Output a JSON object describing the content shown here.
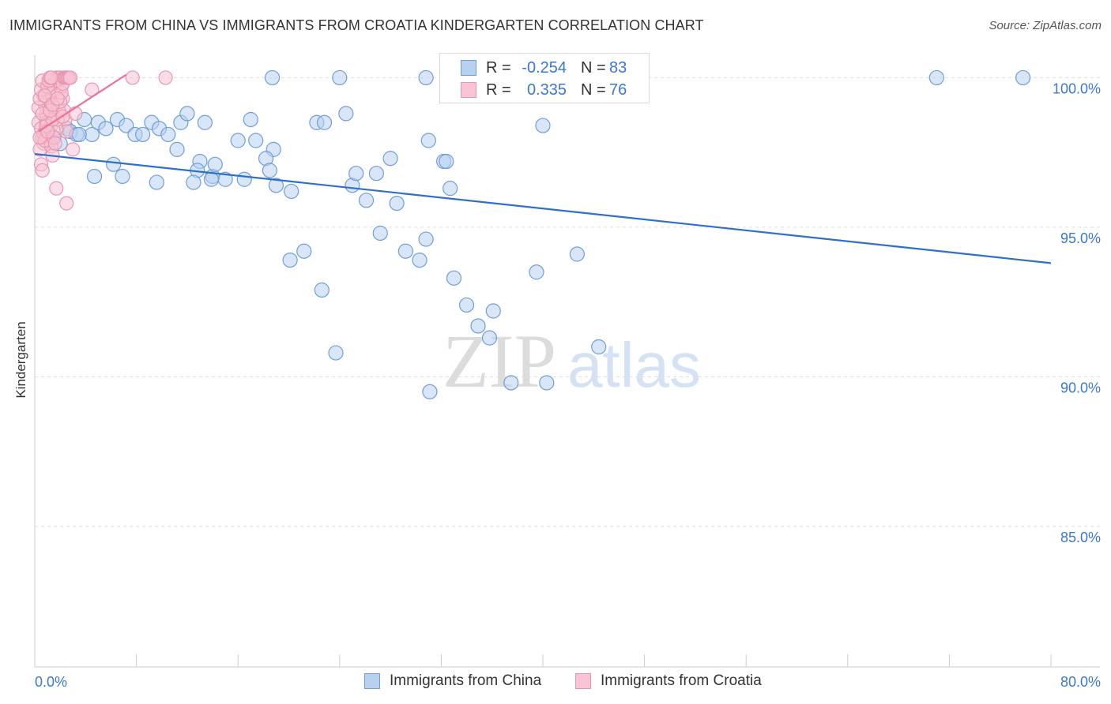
{
  "title": "IMMIGRANTS FROM CHINA VS IMMIGRANTS FROM CROATIA KINDERGARTEN CORRELATION CHART",
  "source": "Source: ZipAtlas.com",
  "watermark": {
    "zip": "ZIP",
    "atlas": "atlas"
  },
  "legend": {
    "r_label": "R =",
    "n_label": "N =",
    "rows": [
      {
        "r": "-0.254",
        "n": "83",
        "fill": "#b8d1f1",
        "stroke": "#6f9ed8"
      },
      {
        "r": "0.335",
        "n": "76",
        "fill": "#f8c3d3",
        "stroke": "#e897b1"
      }
    ]
  },
  "chart_data": {
    "type": "scatter",
    "title": "IMMIGRANTS FROM CHINA VS IMMIGRANTS FROM CROATIA KINDERGARTEN CORRELATION CHART",
    "xlabel": "",
    "ylabel": "Kindergarten",
    "x_tick_labels": [
      "0.0%",
      "80.0%"
    ],
    "y_tick_labels": [
      "100.0%",
      "95.0%",
      "90.0%",
      "85.0%"
    ],
    "y_ticks": [
      100.0,
      95.0,
      90.0,
      85.0
    ],
    "xlim": [
      0,
      80
    ],
    "ylim": [
      80.3,
      100.75
    ],
    "grid": true,
    "legend_position": "top-center",
    "series": [
      {
        "name": "Immigrants from China",
        "color": "#6f9ed8",
        "fill": "#b8d1f1",
        "line_color": "#2f6fcc",
        "R": -0.254,
        "N": 83,
        "trend": {
          "x": [
            0,
            80
          ],
          "y": [
            97.45,
            93.8
          ]
        },
        "points": [
          [
            1.0,
            98.1
          ],
          [
            1.5,
            98.0
          ],
          [
            2.0,
            97.8
          ],
          [
            2.5,
            98.3
          ],
          [
            2.8,
            98.2
          ],
          [
            3.3,
            98.1
          ],
          [
            3.9,
            98.6
          ],
          [
            4.5,
            98.1
          ],
          [
            3.5,
            98.1
          ],
          [
            5.0,
            98.5
          ],
          [
            5.6,
            98.3
          ],
          [
            6.2,
            97.1
          ],
          [
            6.5,
            98.6
          ],
          [
            7.2,
            98.4
          ],
          [
            7.9,
            98.1
          ],
          [
            8.5,
            98.1
          ],
          [
            9.2,
            98.5
          ],
          [
            9.8,
            98.3
          ],
          [
            10.5,
            98.1
          ],
          [
            11.5,
            98.5
          ],
          [
            12.0,
            98.8
          ],
          [
            13.0,
            97.2
          ],
          [
            13.4,
            98.5
          ],
          [
            12.8,
            96.9
          ],
          [
            12.5,
            96.5
          ],
          [
            14.0,
            96.7
          ],
          [
            16.0,
            97.9
          ],
          [
            17.0,
            98.6
          ],
          [
            17.4,
            97.9
          ],
          [
            18.8,
            97.6
          ],
          [
            18.2,
            97.3
          ],
          [
            18.5,
            96.9
          ],
          [
            19.0,
            96.4
          ],
          [
            20.2,
            96.2
          ],
          [
            22.2,
            98.5
          ],
          [
            22.8,
            98.5
          ],
          [
            24.5,
            98.8
          ],
          [
            25.0,
            96.4
          ],
          [
            25.3,
            96.8
          ],
          [
            26.1,
            95.9
          ],
          [
            26.9,
            96.8
          ],
          [
            28.0,
            97.3
          ],
          [
            28.5,
            95.8
          ],
          [
            29.2,
            94.2
          ],
          [
            30.3,
            93.9
          ],
          [
            30.8,
            94.6
          ],
          [
            31.0,
            97.9
          ],
          [
            32.2,
            97.2
          ],
          [
            32.4,
            97.2
          ],
          [
            32.7,
            96.3
          ],
          [
            33.0,
            93.3
          ],
          [
            34.0,
            92.4
          ],
          [
            34.9,
            91.7
          ],
          [
            35.8,
            91.3
          ],
          [
            36.1,
            92.2
          ],
          [
            37.5,
            89.8
          ],
          [
            39.5,
            93.5
          ],
          [
            40.0,
            98.4
          ],
          [
            40.3,
            89.8
          ],
          [
            42.7,
            94.1
          ],
          [
            44.4,
            91.0
          ],
          [
            27.2,
            94.8
          ],
          [
            15.0,
            96.6
          ],
          [
            16.5,
            96.6
          ],
          [
            14.2,
            97.1
          ],
          [
            11.2,
            97.6
          ],
          [
            9.6,
            96.5
          ],
          [
            6.9,
            96.7
          ],
          [
            4.7,
            96.7
          ],
          [
            13.9,
            96.6
          ],
          [
            21.2,
            94.2
          ],
          [
            20.1,
            93.9
          ],
          [
            22.6,
            92.9
          ],
          [
            31.1,
            89.5
          ],
          [
            24.0,
            100.0
          ],
          [
            18.7,
            100.0
          ],
          [
            30.8,
            100.0
          ],
          [
            33.6,
            100.0
          ],
          [
            37.6,
            100.0
          ],
          [
            35.5,
            99.7
          ],
          [
            71.0,
            100.0
          ],
          [
            77.8,
            100.0
          ],
          [
            23.7,
            90.8
          ]
        ]
      },
      {
        "name": "Immigrants from Croatia",
        "color": "#e897b1",
        "fill": "#f8c3d3",
        "line_color": "#e8719a",
        "R": 0.335,
        "N": 76,
        "trend": {
          "x": [
            0.3,
            7.2
          ],
          "y": [
            98.2,
            100.1
          ]
        },
        "points": [
          [
            0.3,
            98.5
          ],
          [
            0.5,
            98.3
          ],
          [
            0.6,
            98.0
          ],
          [
            0.7,
            97.8
          ],
          [
            0.8,
            98.2
          ],
          [
            0.9,
            98.6
          ],
          [
            1.0,
            98.9
          ],
          [
            1.1,
            99.2
          ],
          [
            1.2,
            98.7
          ],
          [
            1.3,
            98.4
          ],
          [
            1.4,
            99.0
          ],
          [
            1.5,
            99.5
          ],
          [
            1.6,
            99.8
          ],
          [
            1.7,
            100.0
          ],
          [
            1.8,
            100.0
          ],
          [
            1.9,
            100.0
          ],
          [
            2.0,
            100.0
          ],
          [
            2.1,
            99.7
          ],
          [
            2.2,
            99.3
          ],
          [
            2.3,
            98.9
          ],
          [
            2.4,
            98.6
          ],
          [
            2.5,
            98.2
          ],
          [
            0.4,
            97.6
          ],
          [
            0.5,
            97.1
          ],
          [
            0.6,
            96.9
          ],
          [
            0.7,
            99.4
          ],
          [
            0.8,
            99.1
          ],
          [
            0.9,
            98.8
          ],
          [
            1.0,
            98.5
          ],
          [
            1.1,
            98.2
          ],
          [
            1.2,
            97.9
          ],
          [
            1.3,
            97.7
          ],
          [
            1.4,
            97.4
          ],
          [
            1.5,
            99.6
          ],
          [
            1.6,
            99.9
          ],
          [
            1.7,
            98.3
          ],
          [
            1.8,
            98.6
          ],
          [
            1.9,
            98.9
          ],
          [
            2.0,
            99.2
          ],
          [
            2.1,
            99.5
          ],
          [
            2.2,
            99.8
          ],
          [
            2.3,
            100.0
          ],
          [
            2.4,
            100.0
          ],
          [
            2.5,
            100.0
          ],
          [
            2.6,
            100.0
          ],
          [
            2.7,
            100.0
          ],
          [
            2.8,
            100.0
          ],
          [
            0.3,
            99.0
          ],
          [
            0.4,
            99.3
          ],
          [
            0.5,
            99.6
          ],
          [
            0.6,
            99.9
          ],
          [
            0.7,
            98.1
          ],
          [
            0.8,
            97.9
          ],
          [
            0.9,
            98.4
          ],
          [
            1.0,
            99.7
          ],
          [
            1.1,
            99.9
          ],
          [
            1.2,
            100.0
          ],
          [
            1.3,
            100.0
          ],
          [
            1.4,
            98.6
          ],
          [
            1.5,
            98.0
          ],
          [
            1.6,
            97.8
          ],
          [
            1.7,
            96.3
          ],
          [
            2.5,
            95.8
          ],
          [
            3.0,
            97.6
          ],
          [
            3.2,
            98.8
          ],
          [
            4.5,
            99.6
          ],
          [
            7.7,
            100.0
          ],
          [
            10.3,
            100.0
          ],
          [
            0.4,
            98.0
          ],
          [
            0.6,
            98.8
          ],
          [
            0.8,
            99.4
          ],
          [
            1.0,
            98.2
          ],
          [
            1.2,
            98.9
          ],
          [
            1.4,
            99.1
          ],
          [
            1.8,
            99.3
          ],
          [
            2.2,
            98.7
          ]
        ]
      }
    ]
  }
}
